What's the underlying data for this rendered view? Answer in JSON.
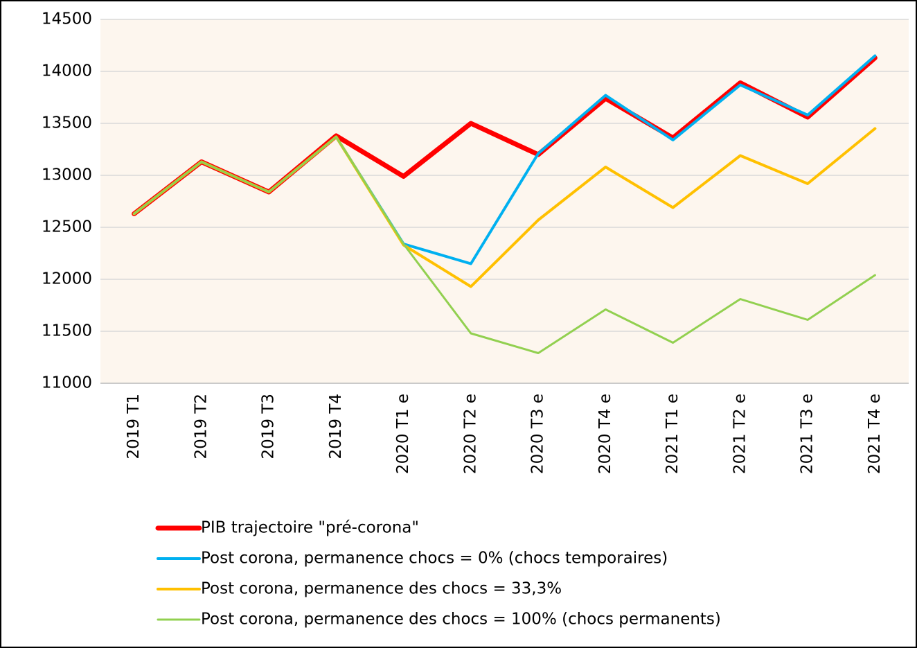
{
  "chart_data": {
    "type": "line",
    "categories": [
      "2019 T1",
      "2019 T2",
      "2019 T3",
      "2019 T4",
      "2020 T1 e",
      "2020 T2 e",
      "2020 T3 e",
      "2020 T4 e",
      "2021 T1 e",
      "2021 T2 e",
      "2021 T3 e",
      "2021 T4 e"
    ],
    "series": [
      {
        "name": "PIB trajectoire \"pré-corona\"",
        "color": "#ff0000",
        "values": [
          12630,
          13130,
          12840,
          13380,
          12990,
          13500,
          13200,
          13740,
          13360,
          13890,
          13560,
          14130
        ]
      },
      {
        "name": "Post corona, permanence chocs = 0% (chocs temporaires)",
        "color": "#00b0f0",
        "values": [
          12630,
          13130,
          12840,
          13370,
          12340,
          12150,
          13210,
          13770,
          13340,
          13870,
          13580,
          14150
        ]
      },
      {
        "name": "Post corona, permanence des chocs = 33,3%",
        "color": "#ffc000",
        "values": [
          12630,
          13130,
          12840,
          13370,
          12330,
          11930,
          12570,
          13080,
          12690,
          13190,
          12920,
          13450
        ]
      },
      {
        "name": "Post corona, permanence des chocs = 100% (chocs permanents)",
        "color": "#92d050",
        "values": [
          12630,
          13130,
          12840,
          13370,
          12340,
          11480,
          11290,
          11710,
          11390,
          11810,
          11610,
          12040
        ]
      }
    ],
    "ylim": [
      11000,
      14500
    ],
    "yticks": [
      11000,
      11500,
      12000,
      12500,
      13000,
      13500,
      14000,
      14500
    ],
    "grid": true,
    "legend": "bottom"
  }
}
